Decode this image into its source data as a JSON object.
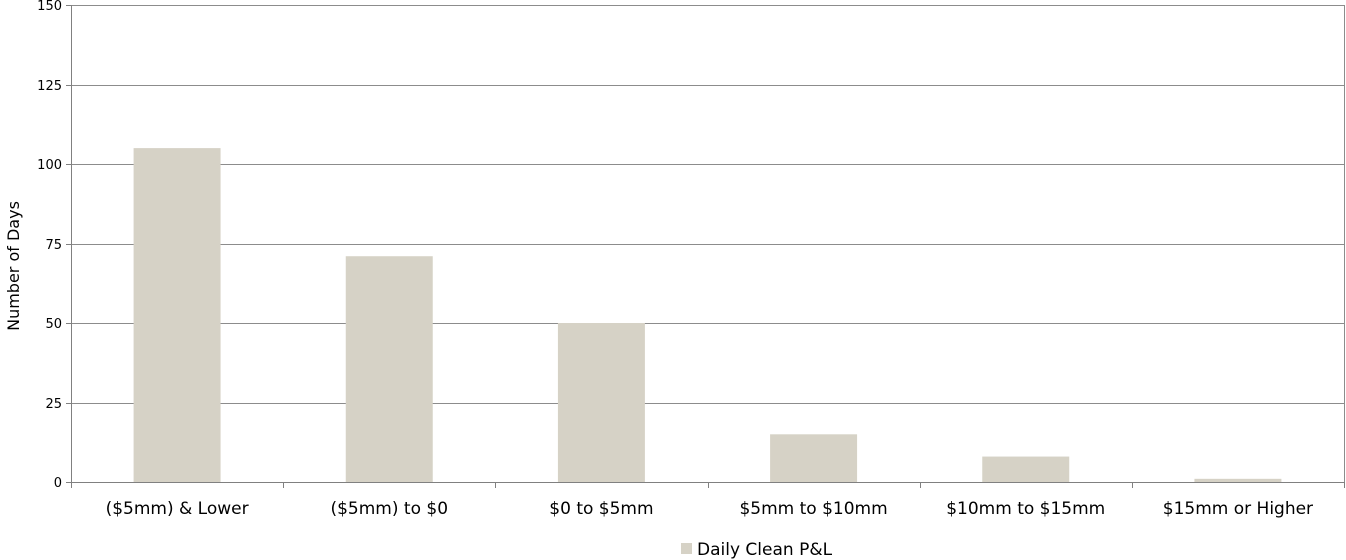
{
  "chart_data": {
    "type": "bar",
    "ylabel": "Number of Days",
    "xlabel": "",
    "ylim": [
      0,
      150
    ],
    "yticks": [
      0,
      25,
      50,
      75,
      100,
      125,
      150
    ],
    "categories": [
      "($5mm) & Lower",
      "($5mm) to $0",
      "$0 to $5mm",
      "$5mm to $10mm",
      "$10mm to $15mm",
      "$15mm or Higher"
    ],
    "series": [
      {
        "name": "Daily Clean P&L",
        "values": [
          105,
          71,
          50,
          15,
          8,
          1
        ]
      }
    ],
    "grid": true,
    "legend": "bottom-center"
  },
  "colors": {
    "bar": "#d6d2c6",
    "grid": "#8c8c8c",
    "axis": "#808080"
  }
}
